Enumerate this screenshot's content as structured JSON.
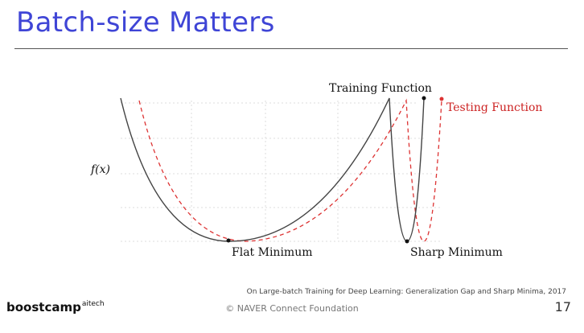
{
  "slide": {
    "title": "Batch-size Matters",
    "citation": "On Large-batch Training for Deep Learning: Generalization Gap and Sharp Minima, 2017",
    "logo_main": "boostcamp",
    "logo_sup": "aitech",
    "footer": "© NAVER Connect Foundation",
    "page_number": "17"
  },
  "diagram": {
    "y_label": "f(x)",
    "training_label": "Training Function",
    "testing_label": "Testing Function",
    "flat_label": "Flat Minimum",
    "sharp_label": "Sharp Minimum",
    "colors": {
      "training": "#444444",
      "testing": "#dd3333",
      "grid": "#dddddd",
      "title": "#3f45d6"
    }
  }
}
